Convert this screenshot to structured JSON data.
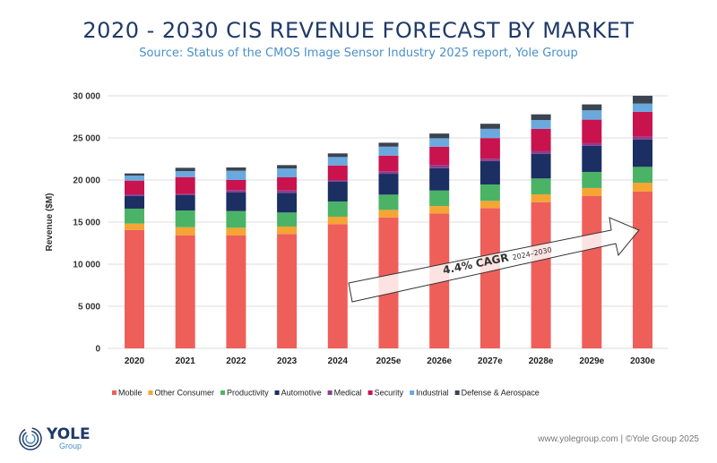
{
  "title": "2020 - 2030 CIS REVENUE FORECAST BY MARKET",
  "subtitle": "Source: Status of the CMOS Image Sensor Industry 2025  report, Yole Group",
  "footer": {
    "url": "www.yolegroup.com | ©Yole Group 2025",
    "logo_main": "YOLE",
    "logo_sub": "Group"
  },
  "chart_data": {
    "type": "bar",
    "stacked": true,
    "ylabel": "Revenue ($M)",
    "xlabel": "",
    "ylim": [
      0,
      30000
    ],
    "yticks": [
      0,
      5000,
      10000,
      15000,
      20000,
      25000,
      30000
    ],
    "ytick_labels": [
      "0",
      "5 000",
      "10 000",
      "15 000",
      "20 000",
      "25 000",
      "30 000"
    ],
    "grid": true,
    "legend_position": "bottom",
    "categories": [
      "2020",
      "2021",
      "2022",
      "2023",
      "2024",
      "2025e",
      "2026e",
      "2027e",
      "2028e",
      "2029e",
      "2030e"
    ],
    "series": [
      {
        "name": "Mobile",
        "color": "#ef5f5a",
        "values": [
          14070,
          13440,
          13440,
          13590,
          14760,
          15560,
          16030,
          16670,
          17370,
          18090,
          18620
        ]
      },
      {
        "name": "Other Consumer",
        "color": "#f5a533",
        "values": [
          750,
          950,
          890,
          880,
          880,
          890,
          880,
          850,
          930,
          960,
          1060
        ]
      },
      {
        "name": "Productivity",
        "color": "#4bb365",
        "values": [
          1780,
          1990,
          1980,
          1670,
          1810,
          1810,
          1840,
          1950,
          1880,
          1910,
          1880
        ]
      },
      {
        "name": "Automotive",
        "color": "#1c2f63",
        "values": [
          1490,
          1810,
          2200,
          2340,
          2340,
          2480,
          2660,
          2770,
          2940,
          3090,
          3260
        ]
      },
      {
        "name": "Medical",
        "color": "#8b3f8f",
        "values": [
          210,
          140,
          290,
          280,
          210,
          290,
          360,
          290,
          290,
          320,
          320
        ]
      },
      {
        "name": "Security",
        "color": "#c8134f",
        "values": [
          1630,
          2020,
          1200,
          1560,
          1730,
          1870,
          2190,
          2450,
          2660,
          2800,
          2950
        ]
      },
      {
        "name": "Industrial",
        "color": "#6aa9de",
        "values": [
          600,
          710,
          1100,
          1060,
          1000,
          1060,
          1000,
          1100,
          1060,
          1110,
          990
        ]
      },
      {
        "name": "Defense & Aerospace",
        "color": "#3b4450",
        "values": [
          250,
          390,
          390,
          390,
          430,
          470,
          560,
          600,
          670,
          700,
          930
        ]
      }
    ],
    "annotation": {
      "text": "4.4% CAGR",
      "subtext": "2024–2030",
      "from": "2025e",
      "to": "2030e"
    }
  }
}
